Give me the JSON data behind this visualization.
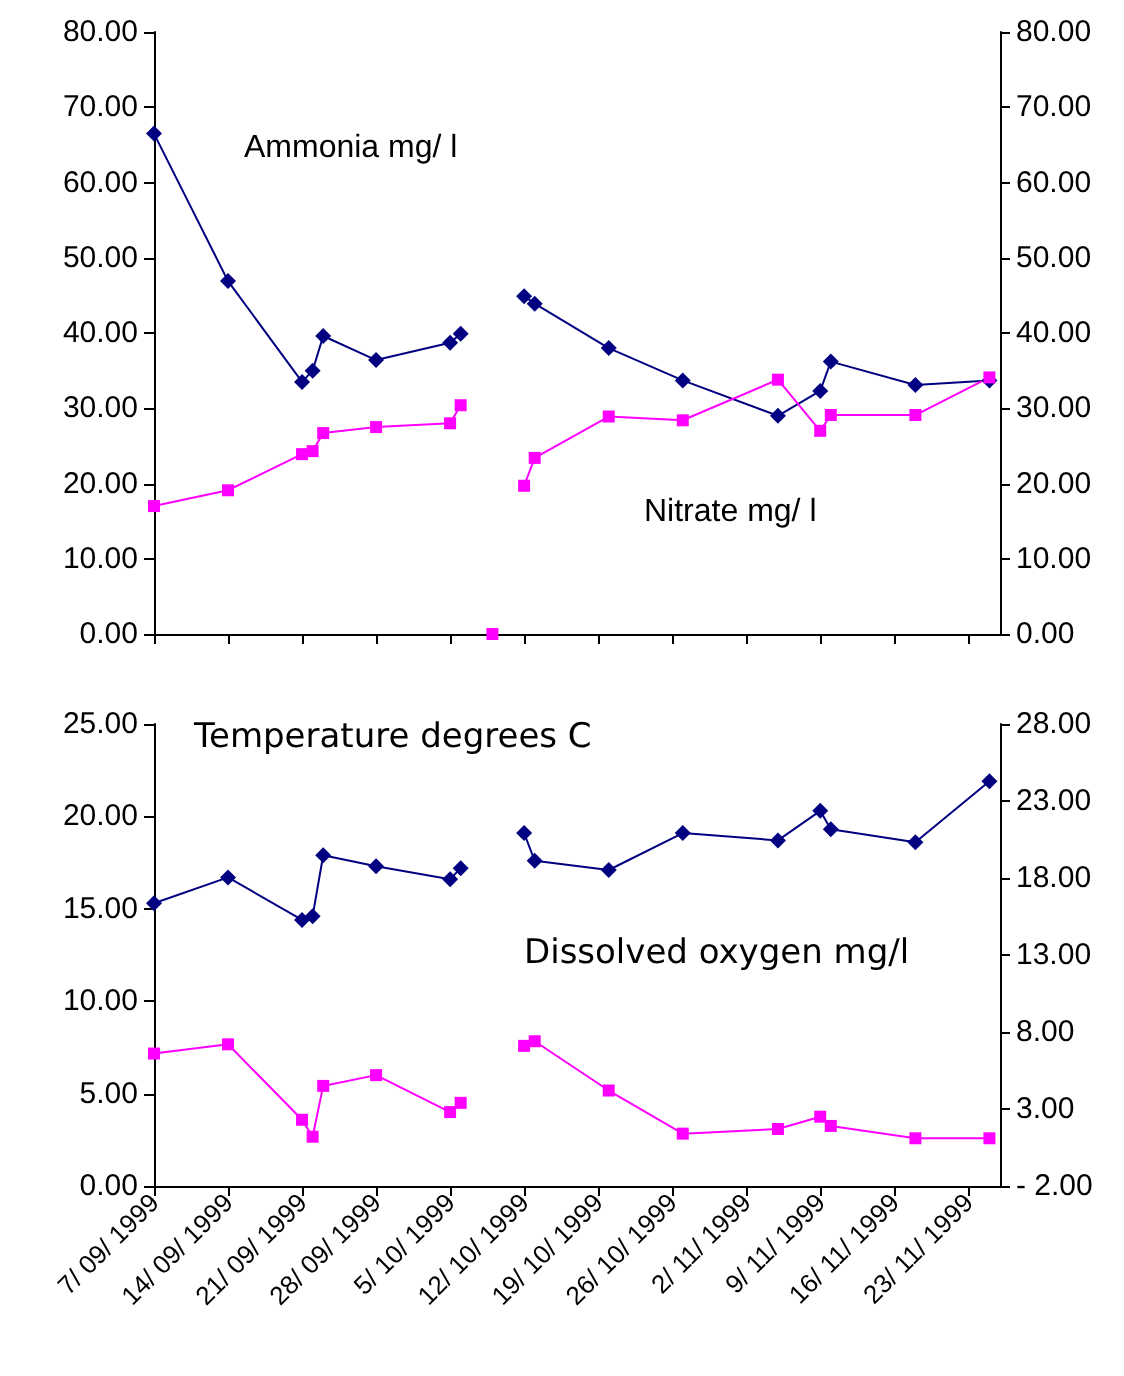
{
  "chart_data": [
    {
      "type": "line",
      "x": [
        "1999-09-07",
        "1999-09-14",
        "1999-09-21",
        "1999-09-22",
        "1999-09-23",
        "1999-09-28",
        "1999-10-05",
        "1999-10-06",
        "1999-10-08",
        "1999-10-09",
        "1999-10-10",
        "1999-10-12",
        "1999-10-13",
        "1999-10-20",
        "1999-10-27",
        "1999-11-05",
        "1999-11-09",
        "1999-11-10",
        "1999-11-18",
        "1999-11-25"
      ],
      "series": [
        {
          "name": "Ammonia mg/ l",
          "color": "#000080",
          "marker": "diamond",
          "values": [
            66.5,
            46.9,
            33.5,
            35.0,
            39.6,
            36.4,
            38.7,
            39.9,
            null,
            null,
            null,
            44.9,
            43.9,
            38.0,
            33.7,
            29.0,
            32.3,
            36.2,
            33.1,
            33.7
          ]
        },
        {
          "name": "Nitrate mg/ l",
          "color": "#ff00ff",
          "marker": "square",
          "values": [
            17.0,
            19.1,
            23.9,
            24.3,
            26.7,
            27.5,
            28.0,
            30.4,
            null,
            0,
            null,
            19.7,
            23.4,
            28.9,
            28.4,
            33.8,
            27.0,
            29.1,
            29.1,
            34.1
          ]
        }
      ],
      "xlim": [
        "1999-09-07",
        "1999-11-26"
      ],
      "xticks": [
        {
          "value": "1999-09-07",
          "label": null
        },
        {
          "value": "1999-09-14",
          "label": null
        },
        {
          "value": "1999-09-21",
          "label": null
        },
        {
          "value": "1999-09-28",
          "label": null
        },
        {
          "value": "1999-10-05",
          "label": null
        },
        {
          "value": "1999-10-12",
          "label": null
        },
        {
          "value": "1999-10-19",
          "label": null
        },
        {
          "value": "1999-10-26",
          "label": null
        },
        {
          "value": "1999-11-02",
          "label": null
        },
        {
          "value": "1999-11-09",
          "label": null
        },
        {
          "value": "1999-11-16",
          "label": null
        },
        {
          "value": "1999-11-23",
          "label": null
        }
      ],
      "ylim": [
        0,
        80
      ],
      "yticks": [
        {
          "value": 0,
          "label": "0.00"
        },
        {
          "value": 10,
          "label": "10.00"
        },
        {
          "value": 20,
          "label": "20.00"
        },
        {
          "value": 30,
          "label": "30.00"
        },
        {
          "value": 40,
          "label": "40.00"
        },
        {
          "value": 50,
          "label": "50.00"
        },
        {
          "value": 60,
          "label": "60.00"
        },
        {
          "value": 70,
          "label": "70.00"
        },
        {
          "value": 80,
          "label": "80.00"
        }
      ],
      "y2lim": [
        0,
        80
      ],
      "y2ticks": [
        {
          "value": 0,
          "label": "0.00"
        },
        {
          "value": 10,
          "label": "10.00"
        },
        {
          "value": 20,
          "label": "20.00"
        },
        {
          "value": 30,
          "label": "30.00"
        },
        {
          "value": 40,
          "label": "40.00"
        },
        {
          "value": 50,
          "label": "50.00"
        },
        {
          "value": 60,
          "label": "60.00"
        },
        {
          "value": 70,
          "label": "70.00"
        },
        {
          "value": 80,
          "label": "80.00"
        }
      ],
      "tick_labels": "y",
      "grid": false,
      "legend": false
    },
    {
      "type": "line",
      "x": [
        "1999-09-07",
        "1999-09-14",
        "1999-09-21",
        "1999-09-22",
        "1999-09-23",
        "1999-09-28",
        "1999-10-05",
        "1999-10-06",
        "1999-10-09",
        "1999-10-12",
        "1999-10-13",
        "1999-10-20",
        "1999-10-27",
        "1999-11-05",
        "1999-11-09",
        "1999-11-10",
        "1999-11-18",
        "1999-11-25"
      ],
      "series": [
        {
          "name": "Temperature degrees C",
          "color": "#000080",
          "marker": "diamond",
          "values": [
            15.3,
            16.7,
            14.4,
            14.6,
            17.9,
            17.3,
            16.6,
            17.2,
            null,
            19.1,
            17.6,
            17.1,
            19.1,
            18.7,
            20.3,
            19.3,
            18.6,
            21.9
          ]
        },
        {
          "name": "Dissolved oxygen mg/l",
          "color": "#ff00ff",
          "marker": "square",
          "axis": "y2",
          "values": [
            6.6,
            7.2,
            2.3,
            1.2,
            4.5,
            5.2,
            2.8,
            3.4,
            null,
            7.1,
            7.4,
            4.2,
            1.4,
            1.7,
            2.5,
            1.9,
            1.1,
            1.1
          ]
        }
      ],
      "xlim": [
        "1999-09-07",
        "1999-11-26"
      ],
      "xticks": [
        {
          "value": "1999-09-07",
          "label": "7/ 09/ 1999"
        },
        {
          "value": "1999-09-14",
          "label": "14/ 09/ 1999"
        },
        {
          "value": "1999-09-21",
          "label": "21/ 09/ 1999"
        },
        {
          "value": "1999-09-28",
          "label": "28/ 09/ 1999"
        },
        {
          "value": "1999-10-05",
          "label": "5/ 10/ 1999"
        },
        {
          "value": "1999-10-12",
          "label": "12/ 10/ 1999"
        },
        {
          "value": "1999-10-19",
          "label": "19/ 10/ 1999"
        },
        {
          "value": "1999-10-26",
          "label": "26/ 10/ 1999"
        },
        {
          "value": "1999-11-02",
          "label": "2/ 11/ 1999"
        },
        {
          "value": "1999-11-09",
          "label": "9/ 11/ 1999"
        },
        {
          "value": "1999-11-16",
          "label": "16/ 11/ 1999"
        },
        {
          "value": "1999-11-23",
          "label": "23/ 11/ 1999"
        }
      ],
      "ylim": [
        0,
        25
      ],
      "yticks": [
        {
          "value": 0,
          "label": "0.00"
        },
        {
          "value": 5,
          "label": "5.00"
        },
        {
          "value": 10,
          "label": "10.00"
        },
        {
          "value": 15,
          "label": "15.00"
        },
        {
          "value": 20,
          "label": "20.00"
        },
        {
          "value": 25,
          "label": "25.00"
        }
      ],
      "y2lim": [
        -2,
        28
      ],
      "y2ticks": [
        {
          "value": -2,
          "label": "- 2.00"
        },
        {
          "value": 3,
          "label": "3.00"
        },
        {
          "value": 8,
          "label": "8.00"
        },
        {
          "value": 13,
          "label": "13.00"
        },
        {
          "value": 18,
          "label": "18.00"
        },
        {
          "value": 23,
          "label": "23.00"
        },
        {
          "value": 28,
          "label": "28.00"
        }
      ],
      "grid": false,
      "legend": false
    }
  ]
}
